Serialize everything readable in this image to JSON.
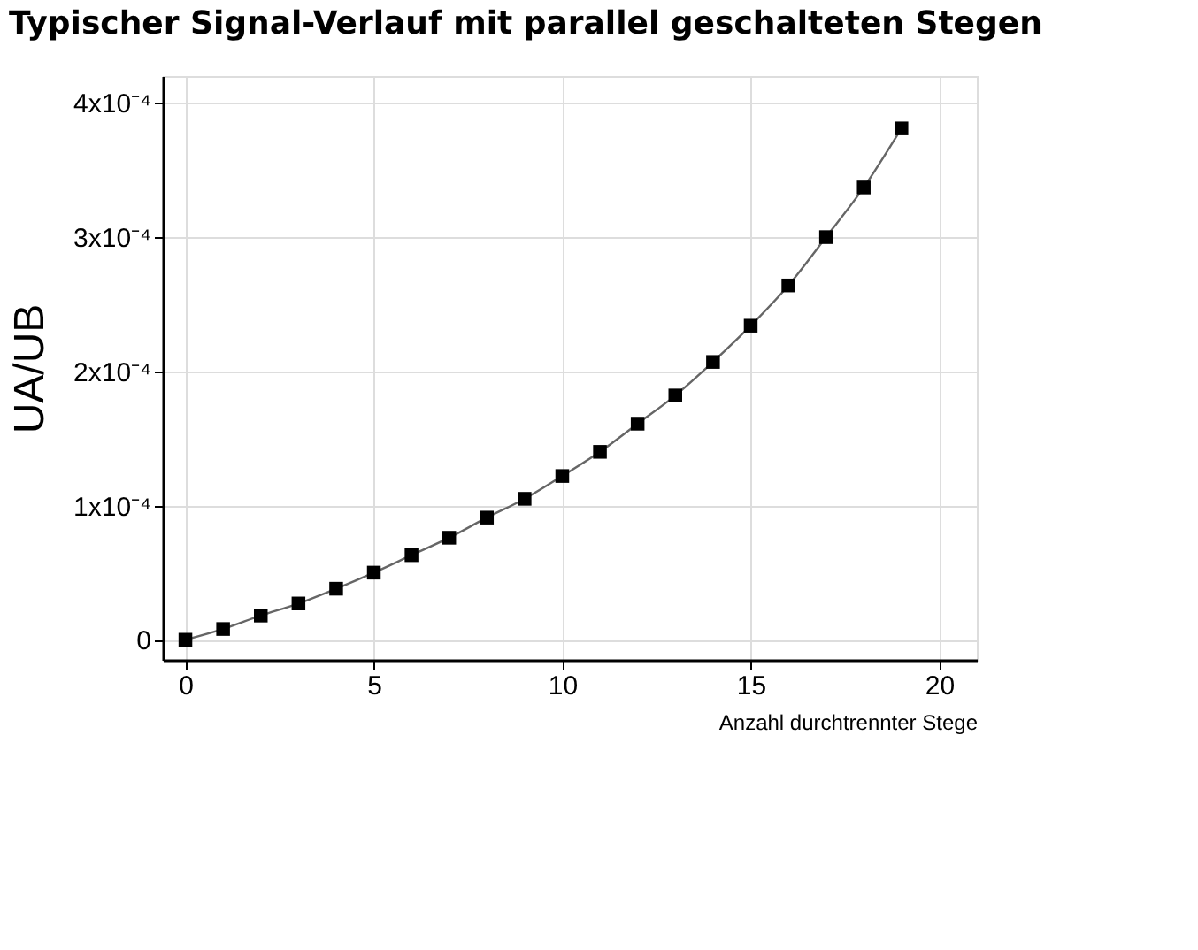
{
  "chart_data": {
    "type": "line",
    "title": "Typischer Signal-Verlauf mit parallel geschalteten Stegen",
    "xlabel": "Anzahl durchtrennter Stege",
    "ylabel": "UA/UB",
    "x": [
      0,
      1,
      2,
      3,
      4,
      5,
      6,
      7,
      8,
      9,
      10,
      11,
      12,
      13,
      14,
      15,
      16,
      17,
      18,
      19
    ],
    "series": [
      {
        "color": "#000000",
        "values": [
          0.0,
          8e-06,
          1.8e-05,
          2.7e-05,
          3.8e-05,
          5e-05,
          6.3e-05,
          7.6e-05,
          9.1e-05,
          0.000105,
          0.000122,
          0.00014,
          0.000161,
          0.000182,
          0.000207,
          0.000234,
          0.000264,
          0.0003,
          0.000337,
          0.000381
        ]
      }
    ],
    "xlim": [
      -0.6,
      21
    ],
    "xticks": [
      0,
      5,
      10,
      15,
      20
    ],
    "ylim": [
      -1.5e-05,
      0.00042
    ],
    "yticks": [
      0,
      {
        "value": 0.0001,
        "label": "1x10⁻⁴"
      },
      {
        "value": 0.0002,
        "label": "2x10⁻⁴"
      },
      {
        "value": 0.0003,
        "label": "3x10⁻⁴"
      },
      {
        "value": 0.0004,
        "label": "4x10⁻⁴"
      }
    ],
    "grid": true,
    "marker": "square",
    "line_style": "solid"
  }
}
